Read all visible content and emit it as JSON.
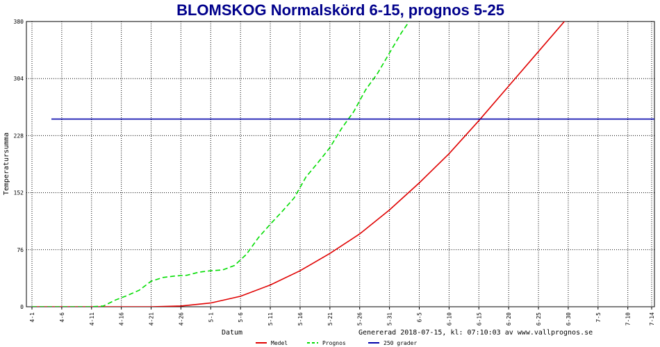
{
  "chart_data": {
    "type": "line",
    "title": "BLOMSKOG Normalskörd 6-15, prognos 5-25",
    "xlabel": "Datum",
    "ylabel": "Temperatursumma",
    "ylim": [
      0,
      380
    ],
    "yticks": [
      0,
      76,
      152,
      228,
      304,
      380
    ],
    "x_start": "4-1",
    "x_days": 104,
    "xticks": [
      "4-1",
      "4-6",
      "4-11",
      "4-16",
      "4-21",
      "4-26",
      "5-1",
      "5-6",
      "5-11",
      "5-16",
      "5-21",
      "5-26",
      "5-31",
      "6-5",
      "6-10",
      "6-15",
      "6-20",
      "6-25",
      "6-30",
      "7-5",
      "7-10",
      "7-14"
    ],
    "grid": true,
    "legend_position": "bottom",
    "footer": "Genererad 2018-07-15, kl: 07:10:03 av www.vallprognos.se",
    "series": [
      {
        "name": "Medel",
        "color": "#e00000",
        "style": "solid",
        "x": [
          "4-1",
          "4-6",
          "4-11",
          "4-16",
          "4-21",
          "4-26",
          "5-1",
          "5-6",
          "5-11",
          "5-16",
          "5-21",
          "5-26",
          "5-31",
          "6-5",
          "6-10",
          "6-15",
          "6-20",
          "6-25",
          "6-30",
          "7-2"
        ],
        "y": [
          0,
          0,
          0,
          0,
          0,
          1,
          5,
          14,
          29,
          48,
          71,
          97,
          129,
          165,
          204,
          248,
          294,
          340,
          386,
          405
        ]
      },
      {
        "name": "Prognos",
        "color": "#00dd00",
        "style": "dashed",
        "x": [
          "4-1",
          "4-6",
          "4-11",
          "4-13",
          "4-15",
          "4-17",
          "4-19",
          "4-21",
          "4-23",
          "4-25",
          "4-27",
          "4-29",
          "5-1",
          "5-3",
          "5-5",
          "5-7",
          "5-9",
          "5-11",
          "5-13",
          "5-15",
          "5-17",
          "5-19",
          "5-21",
          "5-23",
          "5-25",
          "5-27",
          "5-29",
          "5-31",
          "6-2",
          "6-4"
        ],
        "y": [
          0,
          0,
          0,
          1,
          9,
          15,
          22,
          34,
          39,
          41,
          42,
          46,
          48,
          49,
          55,
          70,
          92,
          110,
          127,
          145,
          173,
          192,
          212,
          238,
          260,
          289,
          311,
          338,
          365,
          388
        ]
      },
      {
        "name": "250 grader",
        "color": "#0000aa",
        "style": "solid",
        "x": [
          "4-1",
          "7-14"
        ],
        "y": [
          250,
          250
        ]
      }
    ]
  }
}
